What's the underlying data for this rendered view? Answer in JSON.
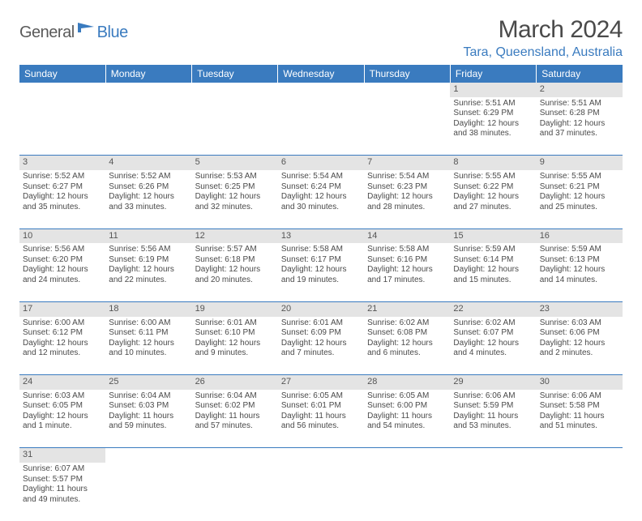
{
  "brand": {
    "part1": "General",
    "part2": "Blue"
  },
  "title": "March 2024",
  "location": "Tara, Queensland, Australia",
  "colors": {
    "accent": "#3a7bbf",
    "daynum_bg": "#e4e4e4",
    "text": "#4a4a4a",
    "rule": "#3a7bbf"
  },
  "weekdays": [
    "Sunday",
    "Monday",
    "Tuesday",
    "Wednesday",
    "Thursday",
    "Friday",
    "Saturday"
  ],
  "weeks": [
    [
      null,
      null,
      null,
      null,
      null,
      {
        "n": "1",
        "sr": "5:51 AM",
        "ss": "6:29 PM",
        "dl": "12 hours and 38 minutes."
      },
      {
        "n": "2",
        "sr": "5:51 AM",
        "ss": "6:28 PM",
        "dl": "12 hours and 37 minutes."
      }
    ],
    [
      {
        "n": "3",
        "sr": "5:52 AM",
        "ss": "6:27 PM",
        "dl": "12 hours and 35 minutes."
      },
      {
        "n": "4",
        "sr": "5:52 AM",
        "ss": "6:26 PM",
        "dl": "12 hours and 33 minutes."
      },
      {
        "n": "5",
        "sr": "5:53 AM",
        "ss": "6:25 PM",
        "dl": "12 hours and 32 minutes."
      },
      {
        "n": "6",
        "sr": "5:54 AM",
        "ss": "6:24 PM",
        "dl": "12 hours and 30 minutes."
      },
      {
        "n": "7",
        "sr": "5:54 AM",
        "ss": "6:23 PM",
        "dl": "12 hours and 28 minutes."
      },
      {
        "n": "8",
        "sr": "5:55 AM",
        "ss": "6:22 PM",
        "dl": "12 hours and 27 minutes."
      },
      {
        "n": "9",
        "sr": "5:55 AM",
        "ss": "6:21 PM",
        "dl": "12 hours and 25 minutes."
      }
    ],
    [
      {
        "n": "10",
        "sr": "5:56 AM",
        "ss": "6:20 PM",
        "dl": "12 hours and 24 minutes."
      },
      {
        "n": "11",
        "sr": "5:56 AM",
        "ss": "6:19 PM",
        "dl": "12 hours and 22 minutes."
      },
      {
        "n": "12",
        "sr": "5:57 AM",
        "ss": "6:18 PM",
        "dl": "12 hours and 20 minutes."
      },
      {
        "n": "13",
        "sr": "5:58 AM",
        "ss": "6:17 PM",
        "dl": "12 hours and 19 minutes."
      },
      {
        "n": "14",
        "sr": "5:58 AM",
        "ss": "6:16 PM",
        "dl": "12 hours and 17 minutes."
      },
      {
        "n": "15",
        "sr": "5:59 AM",
        "ss": "6:14 PM",
        "dl": "12 hours and 15 minutes."
      },
      {
        "n": "16",
        "sr": "5:59 AM",
        "ss": "6:13 PM",
        "dl": "12 hours and 14 minutes."
      }
    ],
    [
      {
        "n": "17",
        "sr": "6:00 AM",
        "ss": "6:12 PM",
        "dl": "12 hours and 12 minutes."
      },
      {
        "n": "18",
        "sr": "6:00 AM",
        "ss": "6:11 PM",
        "dl": "12 hours and 10 minutes."
      },
      {
        "n": "19",
        "sr": "6:01 AM",
        "ss": "6:10 PM",
        "dl": "12 hours and 9 minutes."
      },
      {
        "n": "20",
        "sr": "6:01 AM",
        "ss": "6:09 PM",
        "dl": "12 hours and 7 minutes."
      },
      {
        "n": "21",
        "sr": "6:02 AM",
        "ss": "6:08 PM",
        "dl": "12 hours and 6 minutes."
      },
      {
        "n": "22",
        "sr": "6:02 AM",
        "ss": "6:07 PM",
        "dl": "12 hours and 4 minutes."
      },
      {
        "n": "23",
        "sr": "6:03 AM",
        "ss": "6:06 PM",
        "dl": "12 hours and 2 minutes."
      }
    ],
    [
      {
        "n": "24",
        "sr": "6:03 AM",
        "ss": "6:05 PM",
        "dl": "12 hours and 1 minute."
      },
      {
        "n": "25",
        "sr": "6:04 AM",
        "ss": "6:03 PM",
        "dl": "11 hours and 59 minutes."
      },
      {
        "n": "26",
        "sr": "6:04 AM",
        "ss": "6:02 PM",
        "dl": "11 hours and 57 minutes."
      },
      {
        "n": "27",
        "sr": "6:05 AM",
        "ss": "6:01 PM",
        "dl": "11 hours and 56 minutes."
      },
      {
        "n": "28",
        "sr": "6:05 AM",
        "ss": "6:00 PM",
        "dl": "11 hours and 54 minutes."
      },
      {
        "n": "29",
        "sr": "6:06 AM",
        "ss": "5:59 PM",
        "dl": "11 hours and 53 minutes."
      },
      {
        "n": "30",
        "sr": "6:06 AM",
        "ss": "5:58 PM",
        "dl": "11 hours and 51 minutes."
      }
    ],
    [
      {
        "n": "31",
        "sr": "6:07 AM",
        "ss": "5:57 PM",
        "dl": "11 hours and 49 minutes."
      },
      null,
      null,
      null,
      null,
      null,
      null
    ]
  ],
  "labels": {
    "sunrise": "Sunrise:",
    "sunset": "Sunset:",
    "daylight": "Daylight:"
  }
}
